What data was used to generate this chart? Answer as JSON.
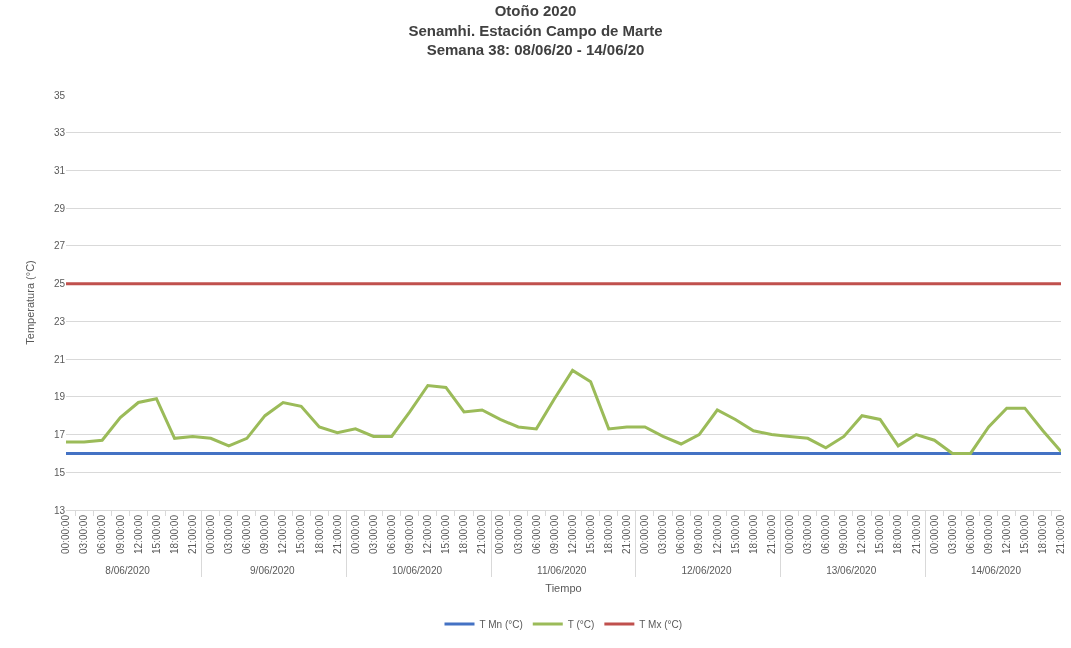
{
  "chart_data": {
    "type": "line",
    "title": "Otoño 2020\nSenamhi. Estación Campo de Marte\nSemana 38: 08/06/20 - 14/06/20",
    "xlabel": "Tiempo",
    "ylabel": "Temperatura (°C)",
    "categories": [
      "00:00:00",
      "03:00:00",
      "06:00:00",
      "09:00:00",
      "12:00:00",
      "15:00:00",
      "18:00:00",
      "21:00:00",
      "00:00:00",
      "03:00:00",
      "06:00:00",
      "09:00:00",
      "12:00:00",
      "15:00:00",
      "18:00:00",
      "21:00:00",
      "00:00:00",
      "03:00:00",
      "06:00:00",
      "09:00:00",
      "12:00:00",
      "15:00:00",
      "18:00:00",
      "21:00:00",
      "00:00:00",
      "03:00:00",
      "06:00:00",
      "09:00:00",
      "12:00:00",
      "15:00:00",
      "18:00:00",
      "21:00:00",
      "00:00:00",
      "03:00:00",
      "06:00:00",
      "09:00:00",
      "12:00:00",
      "15:00:00",
      "18:00:00",
      "21:00:00",
      "00:00:00",
      "03:00:00",
      "06:00:00",
      "09:00:00",
      "12:00:00",
      "15:00:00",
      "18:00:00",
      "21:00:00",
      "00:00:00",
      "03:00:00",
      "06:00:00",
      "09:00:00",
      "12:00:00",
      "15:00:00",
      "18:00:00",
      "21:00:00"
    ],
    "annotations": [
      "8/06/2020",
      "9/06/2020",
      "10/06/2020",
      "11/06/2020",
      "12/06/2020",
      "13/06/2020",
      "14/06/2020"
    ],
    "series": [
      {
        "name": "T Mn (°C)",
        "color": "#4472c4",
        "values": [
          16,
          16,
          16,
          16,
          16,
          16,
          16,
          16,
          16,
          16,
          16,
          16,
          16,
          16,
          16,
          16,
          16,
          16,
          16,
          16,
          16,
          16,
          16,
          16,
          16,
          16,
          16,
          16,
          16,
          16,
          16,
          16,
          16,
          16,
          16,
          16,
          16,
          16,
          16,
          16,
          16,
          16,
          16,
          16,
          16,
          16,
          16,
          16,
          16,
          16,
          16,
          16,
          16,
          16,
          16,
          16
        ]
      },
      {
        "name": "T (°C)",
        "color": "#9bbb59",
        "values": [
          16.6,
          16.6,
          16.7,
          17.9,
          18.7,
          18.9,
          16.8,
          16.9,
          16.8,
          16.4,
          16.8,
          18.0,
          18.7,
          18.5,
          17.4,
          17.1,
          17.3,
          16.9,
          16.9,
          18.2,
          19.6,
          19.5,
          18.2,
          18.3,
          17.8,
          17.4,
          17.3,
          18.9,
          20.4,
          19.8,
          17.3,
          17.4,
          17.4,
          16.9,
          16.5,
          17.0,
          18.3,
          17.8,
          17.2,
          17.0,
          16.9,
          16.8,
          16.3,
          16.9,
          18.0,
          17.8,
          16.4,
          17.0,
          16.7,
          16.0,
          16.0,
          17.4,
          18.4,
          18.4,
          17.2,
          16.1
        ]
      },
      {
        "name": "T Mx (°C)",
        "color": "#c0504d",
        "values": [
          25,
          25,
          25,
          25,
          25,
          25,
          25,
          25,
          25,
          25,
          25,
          25,
          25,
          25,
          25,
          25,
          25,
          25,
          25,
          25,
          25,
          25,
          25,
          25,
          25,
          25,
          25,
          25,
          25,
          25,
          25,
          25,
          25,
          25,
          25,
          25,
          25,
          25,
          25,
          25,
          25,
          25,
          25,
          25,
          25,
          25,
          25,
          25,
          25,
          25,
          25,
          25,
          25,
          25,
          25,
          25
        ]
      }
    ],
    "ylim": [
      13,
      35
    ],
    "yticks": [
      13,
      15,
      17,
      19,
      21,
      23,
      25,
      27,
      29,
      31,
      33,
      35
    ],
    "grid": "y",
    "legend": "bottom",
    "marker": "none",
    "line_style": "solid"
  }
}
